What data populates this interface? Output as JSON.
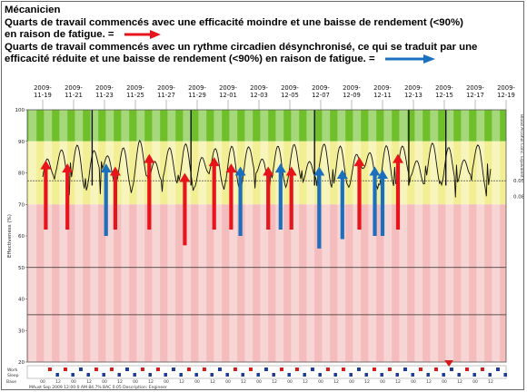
{
  "header": {
    "title": "Mécanicien",
    "line1": "Quarts de travail commencés avec une efficacité moindre et une baisse de rendement (<90%)",
    "line2": "en raison de fatigue. =",
    "line3": "Quarts de travail commencés avec un rythme circadien désynchronisé, ce qui se traduit par une",
    "line4": "efficacité réduite et une baisse de rendement (<90%) en raison de fatigue. ="
  },
  "colors": {
    "fatigue_arrow": "#e8141c",
    "circadian_arrow": "#1a6fbf",
    "zone_green": "#6fbf2a",
    "zone_yellow": "#f2ee94",
    "zone_red": "#f4bcbc",
    "day_stripe": "#ffffff"
  },
  "chart": {
    "dates": [
      "2009-11-19",
      "2009-11-21",
      "2009-11-23",
      "2009-11-25",
      "2009-11-27",
      "2009-11-29",
      "2009-12-01",
      "2009-12-03",
      "2009-12-05",
      "2009-12-07",
      "2009-12-09",
      "2009-12-11",
      "2009-12-13",
      "2009-12-15",
      "2009-12-17",
      "2009-12-19"
    ],
    "y_ticks": [
      "100",
      "90",
      "80",
      "70",
      "60",
      "50",
      "40",
      "30",
      "20"
    ],
    "y_label": "Effectiveness (%)",
    "right_label": "Blood Alcohol Conc. Equivalent",
    "right_ticks": [
      "0.05",
      "0.08"
    ],
    "bottom_rows": [
      "Work",
      "Sleep"
    ],
    "zoom_label": "Base",
    "status_text": "MAust Sep 2009 12:00:0 AM 84.7% BAC 0.05  Description: Engineer",
    "zones": {
      "green_min": 90,
      "yellow_min": 70,
      "y_min": 20,
      "y_max": 100
    },
    "thresholds": [
      77.5,
      50,
      35
    ],
    "fatigue_arrows": [
      {
        "day": 1.2,
        "tip": 84,
        "tail": 62
      },
      {
        "day": 2.6,
        "tip": 83,
        "tail": 62
      },
      {
        "day": 5.7,
        "tip": 82,
        "tail": 62
      },
      {
        "day": 7.9,
        "tip": 86,
        "tail": 62
      },
      {
        "day": 10.2,
        "tip": 80,
        "tail": 57
      },
      {
        "day": 12.1,
        "tip": 85,
        "tail": 62
      },
      {
        "day": 13.2,
        "tip": 83,
        "tail": 62
      },
      {
        "day": 15.6,
        "tip": 82,
        "tail": 62
      },
      {
        "day": 17.1,
        "tip": 82,
        "tail": 62
      },
      {
        "day": 21.5,
        "tip": 85,
        "tail": 62
      },
      {
        "day": 24.0,
        "tip": 86,
        "tail": 62
      }
    ],
    "circadian_arrows": [
      {
        "day": 5.1,
        "tip": 83,
        "tail": 60
      },
      {
        "day": 13.8,
        "tip": 82,
        "tail": 60
      },
      {
        "day": 16.4,
        "tip": 83,
        "tail": 62
      },
      {
        "day": 18.9,
        "tip": 82,
        "tail": 56
      },
      {
        "day": 20.4,
        "tip": 81,
        "tail": 59
      },
      {
        "day": 22.5,
        "tip": 82,
        "tail": 60
      },
      {
        "day": 23.0,
        "tip": 81,
        "tail": 60
      }
    ]
  }
}
